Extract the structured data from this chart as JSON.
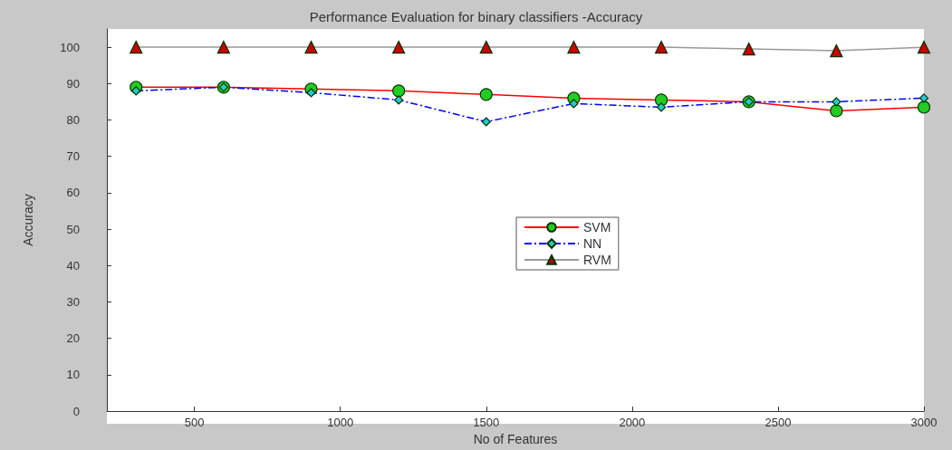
{
  "chart_data": {
    "type": "line",
    "title": "Performance Evaluation for binary classifiers -Accuracy",
    "xlabel": "No of Features",
    "ylabel": "Accuracy",
    "x": [
      300,
      600,
      900,
      1200,
      1500,
      1800,
      2100,
      2400,
      2700,
      3000
    ],
    "series": [
      {
        "name": "SVM",
        "color": "#ff0000",
        "marker": "circle",
        "line_style": "solid",
        "values": [
          89,
          89,
          88.5,
          88,
          87,
          86,
          85.5,
          85,
          82.5,
          83.5
        ]
      },
      {
        "name": "NN",
        "color": "#0000ff",
        "marker": "diamond",
        "line_style": "dashdot",
        "values": [
          88,
          89,
          87.5,
          85.5,
          79.5,
          84.5,
          83.5,
          85,
          85,
          86
        ]
      },
      {
        "name": "RVM",
        "color": "#999999",
        "marker": "triangle",
        "line_style": "solid",
        "values": [
          100,
          100,
          100,
          100,
          100,
          100,
          100,
          99.5,
          99,
          100
        ]
      }
    ],
    "xlim": [
      200,
      3000
    ],
    "xticks": [
      500,
      1000,
      1500,
      2000,
      2500,
      3000
    ],
    "ylim": [
      0,
      105
    ],
    "yticks": [
      0,
      10,
      20,
      30,
      40,
      50,
      60,
      70,
      80,
      90,
      100
    ],
    "grid": false,
    "legend": "center"
  }
}
